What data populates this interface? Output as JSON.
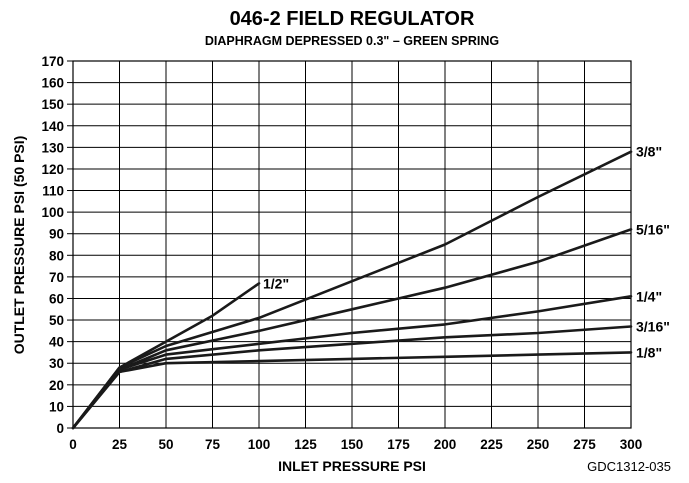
{
  "chart_data": {
    "type": "line",
    "title": "046-2 FIELD REGULATOR",
    "subtitle": "DIAPHRAGM DEPRESSED 0.3\" – GREEN SPRING",
    "xlabel": "INLET PRESSURE PSI",
    "ylabel": "OUTLET PRESSURE PSI (50 PSI)",
    "xlim": [
      0,
      300
    ],
    "ylim": [
      0,
      170
    ],
    "xticks": [
      0,
      25,
      50,
      75,
      100,
      125,
      150,
      175,
      200,
      225,
      250,
      275,
      300
    ],
    "yticks": [
      0,
      10,
      20,
      30,
      40,
      50,
      60,
      70,
      80,
      90,
      100,
      110,
      120,
      130,
      140,
      150,
      160,
      170
    ],
    "grid": true,
    "series": [
      {
        "name": "1/2\"",
        "x": [
          0,
          25,
          50,
          75,
          100
        ],
        "y": [
          0,
          28,
          40,
          52,
          67
        ]
      },
      {
        "name": "3/8\"",
        "x": [
          0,
          25,
          50,
          100,
          150,
          200,
          250,
          300
        ],
        "y": [
          0,
          28,
          38,
          51,
          68,
          85,
          107,
          128
        ]
      },
      {
        "name": "5/16\"",
        "x": [
          0,
          25,
          50,
          100,
          150,
          200,
          250,
          300
        ],
        "y": [
          0,
          27,
          36,
          45,
          55,
          65,
          77,
          92
        ]
      },
      {
        "name": "1/4\"",
        "x": [
          0,
          25,
          50,
          100,
          150,
          200,
          250,
          300
        ],
        "y": [
          0,
          27,
          34,
          39,
          44,
          48,
          54,
          61
        ]
      },
      {
        "name": "3/16\"",
        "x": [
          0,
          25,
          50,
          100,
          150,
          200,
          250,
          300
        ],
        "y": [
          0,
          26,
          32,
          36,
          39,
          42,
          44,
          47
        ]
      },
      {
        "name": "1/8\"",
        "x": [
          0,
          25,
          50,
          100,
          150,
          200,
          250,
          300
        ],
        "y": [
          0,
          26,
          30,
          31,
          32,
          33,
          34,
          35
        ]
      }
    ]
  },
  "figure_code": "GDC1312-035"
}
